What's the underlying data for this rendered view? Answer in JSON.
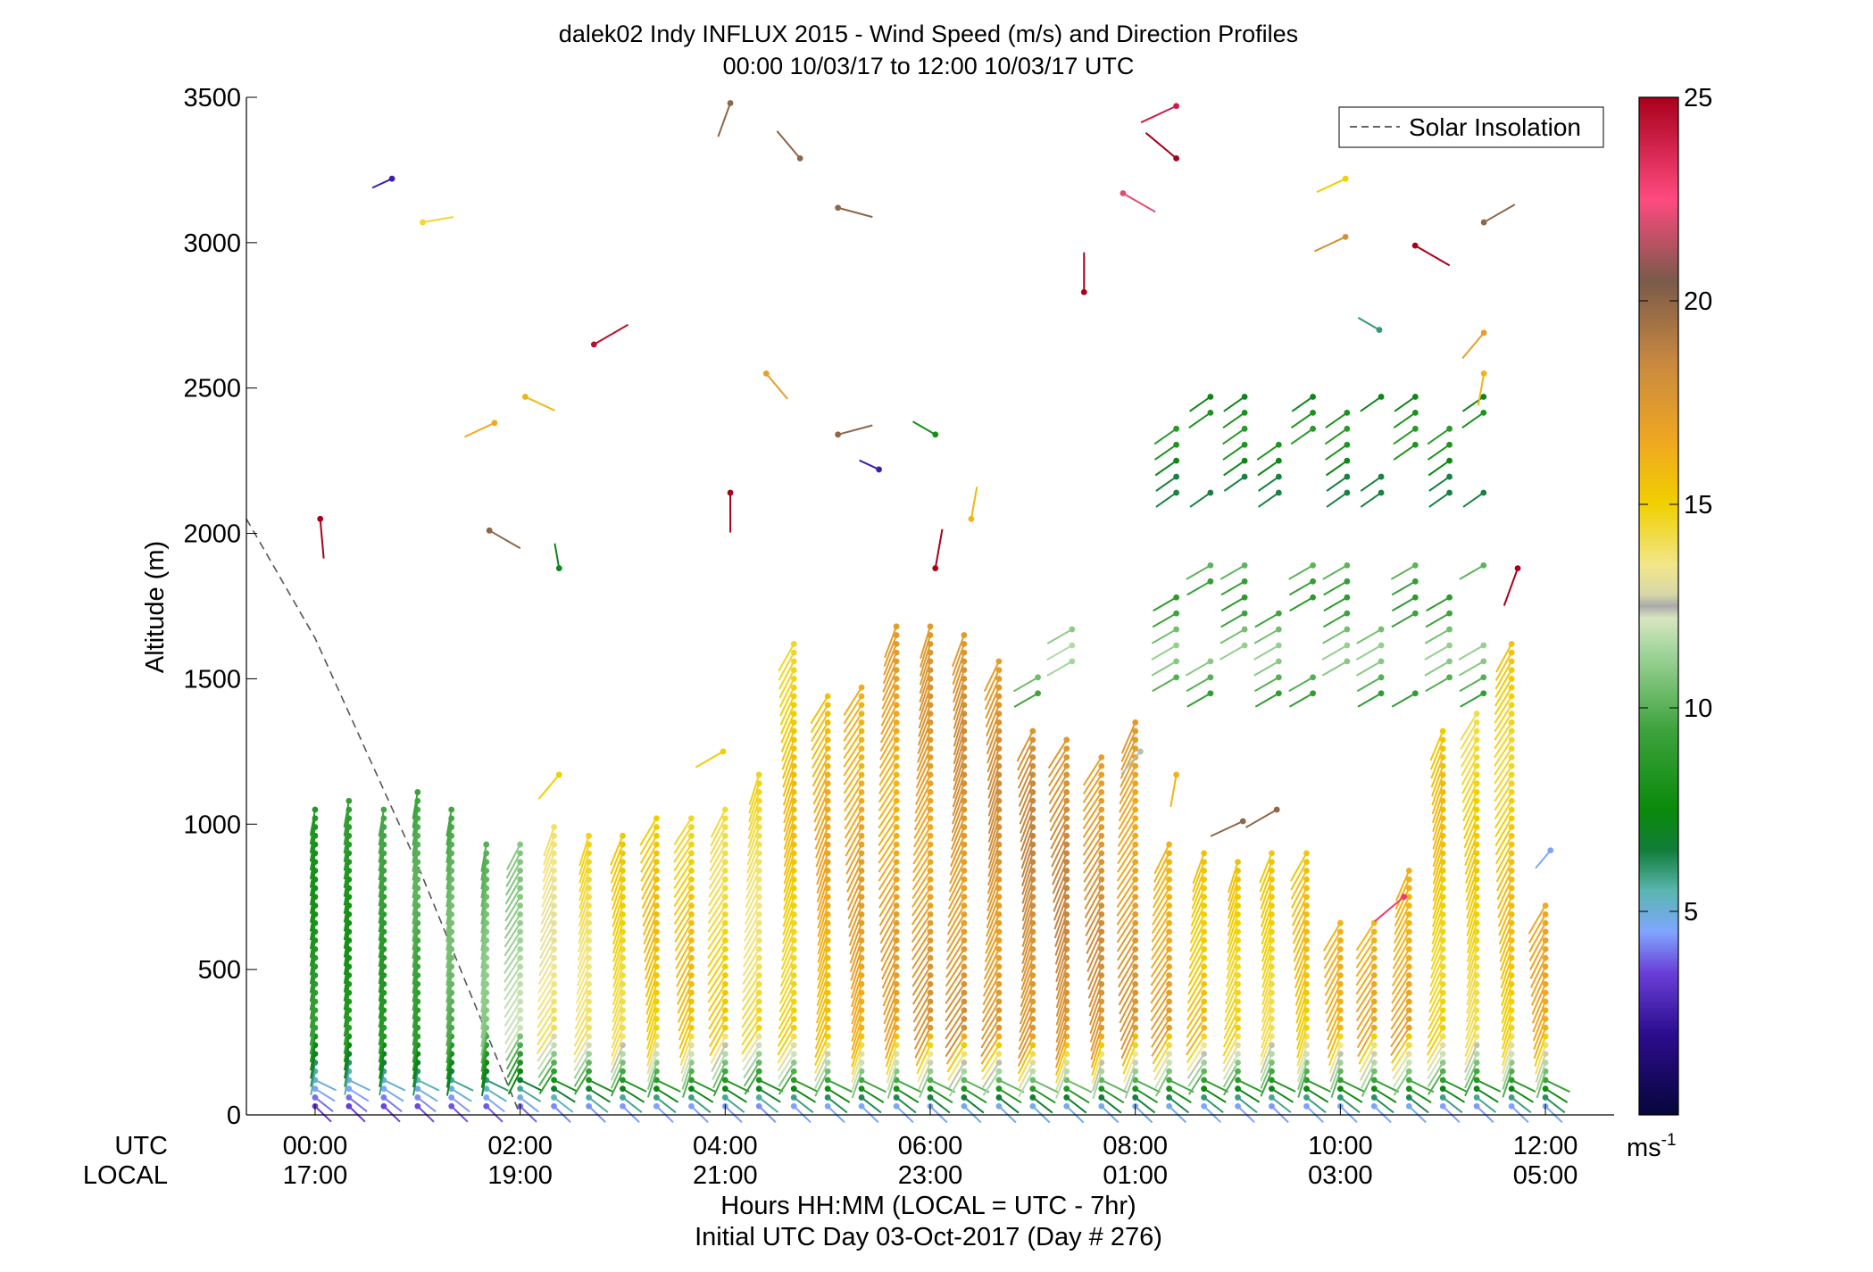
{
  "chart_data": {
    "type": "scatter",
    "title": "dalek02 Indy INFLUX 2015 - Wind Speed (m/s) and Direction Profiles",
    "subtitle": "00:00 10/03/17 to 12:00 10/03/17  UTC",
    "ylabel": "Altitude (m)",
    "ylim": [
      0,
      3500
    ],
    "yticks": [
      "0",
      "500",
      "1000",
      "1500",
      "2000",
      "2500",
      "3000",
      "3500"
    ],
    "xlim_hours": [
      -0.67,
      12.67
    ],
    "x_row_labels": [
      "UTC",
      "LOCAL"
    ],
    "x_ticks_utc": [
      "00:00",
      "02:00",
      "04:00",
      "06:00",
      "08:00",
      "10:00",
      "12:00"
    ],
    "x_ticks_local": [
      "17:00",
      "19:00",
      "21:00",
      "23:00",
      "01:00",
      "03:00",
      "05:00"
    ],
    "xlabel": "Hours HH:MM  (LOCAL = UTC - 7hr)",
    "xlabel2": "Initial UTC Day 03-Oct-2017 (Day # 276)",
    "legend": {
      "entries": [
        "Solar Insolation"
      ],
      "placement": "top-right"
    },
    "colorbar": {
      "range": [
        0,
        25
      ],
      "ticks": [
        "5",
        "10",
        "15",
        "20",
        "25"
      ],
      "unit_label": "ms",
      "unit_exp": "-1",
      "stops": [
        [
          0,
          "#06063a"
        ],
        [
          2,
          "#2c0d8e"
        ],
        [
          3.5,
          "#6a3fd8"
        ],
        [
          4.5,
          "#7fa6ff"
        ],
        [
          5.5,
          "#5ab6b0"
        ],
        [
          6.5,
          "#127d3a"
        ],
        [
          7.5,
          "#0a8a0a"
        ],
        [
          9.5,
          "#3fa33f"
        ],
        [
          11.5,
          "#a7d8a0"
        ],
        [
          12.2,
          "#d9e6c0"
        ],
        [
          12.5,
          "#aaaaaa"
        ],
        [
          12.8,
          "#d8d8a8"
        ],
        [
          13.5,
          "#f2e68a"
        ],
        [
          15,
          "#f0d000"
        ],
        [
          16.5,
          "#f0a820"
        ],
        [
          18.5,
          "#c88840"
        ],
        [
          20.5,
          "#7a5a4a"
        ],
        [
          22.5,
          "#ff4a80"
        ],
        [
          25,
          "#a8001a"
        ]
      ]
    },
    "solar_insolation": [
      [
        -0.67,
        2050
      ],
      [
        0,
        1640
      ],
      [
        1,
        860
      ],
      [
        2,
        0
      ]
    ],
    "profile_times_hours": [
      0,
      0.33,
      0.67,
      1,
      1.33,
      1.67,
      2,
      2.33,
      2.67,
      3,
      3.33,
      3.67,
      4,
      4.33,
      4.67,
      5,
      5.33,
      5.67,
      6,
      6.33,
      6.67,
      7,
      7.33,
      7.67,
      8,
      8.33,
      8.67,
      9,
      9.33,
      9.67,
      10,
      10.33,
      10.67,
      11,
      11.33,
      11.67,
      12
    ],
    "profile_top_m": [
      1050,
      1090,
      1060,
      1130,
      1060,
      950,
      950,
      1000,
      960,
      960,
      1020,
      1020,
      1060,
      1190,
      1620,
      1450,
      1480,
      1690,
      1700,
      1660,
      1580,
      1320,
      1310,
      1250,
      1350,
      950,
      900,
      880,
      900,
      920,
      680,
      660,
      850,
      1320,
      1380,
      1620,
      720
    ],
    "profile_speed_ms": [
      9,
      9,
      9.5,
      10,
      10.5,
      11,
      12,
      14.5,
      15,
      15.5,
      16,
      16,
      15.5,
      15,
      16,
      17,
      17.5,
      17.5,
      18,
      18.5,
      18.5,
      19,
      19,
      18.5,
      18,
      17.5,
      16.5,
      16,
      15.5,
      16,
      16.5,
      17,
      17.5,
      16,
      15.5,
      16,
      17
    ],
    "sparse_obs": [
      {
        "t": 0.05,
        "alt": 2050,
        "spd": 25,
        "dir": 175
      },
      {
        "t": 0.75,
        "alt": 3220,
        "spd": 2.5,
        "dir": 245
      },
      {
        "t": 1.05,
        "alt": 3070,
        "spd": 14.5,
        "dir": 80
      },
      {
        "t": 1.75,
        "alt": 2380,
        "spd": 16.5,
        "dir": 245
      },
      {
        "t": 1.7,
        "alt": 2010,
        "spd": 20,
        "dir": 120
      },
      {
        "t": 2.05,
        "alt": 2470,
        "spd": 16,
        "dir": 115
      },
      {
        "t": 2.38,
        "alt": 1880,
        "spd": 7,
        "dir": 350
      },
      {
        "t": 2.72,
        "alt": 2650,
        "spd": 24.5,
        "dir": 60
      },
      {
        "t": 2.38,
        "alt": 1170,
        "spd": 15,
        "dir": 220
      },
      {
        "t": 4.05,
        "alt": 3480,
        "spd": 20,
        "dir": 200
      },
      {
        "t": 4.05,
        "alt": 2140,
        "spd": 25,
        "dir": 180
      },
      {
        "t": 3.98,
        "alt": 1250,
        "spd": 15,
        "dir": 240
      },
      {
        "t": 4.4,
        "alt": 2550,
        "spd": 17,
        "dir": 140
      },
      {
        "t": 4.73,
        "alt": 3290,
        "spd": 20,
        "dir": 320
      },
      {
        "t": 5.1,
        "alt": 3120,
        "spd": 20,
        "dir": 105
      },
      {
        "t": 5.1,
        "alt": 2340,
        "spd": 20,
        "dir": 75
      },
      {
        "t": 5.5,
        "alt": 2220,
        "spd": 2.5,
        "dir": 295
      },
      {
        "t": 6.05,
        "alt": 2340,
        "spd": 8,
        "dir": 300
      },
      {
        "t": 6.05,
        "alt": 1880,
        "spd": 25,
        "dir": 10
      },
      {
        "t": 6.4,
        "alt": 2050,
        "spd": 16,
        "dir": 10
      },
      {
        "t": 7.5,
        "alt": 2830,
        "spd": 25,
        "dir": 0
      },
      {
        "t": 7.88,
        "alt": 3170,
        "spd": 22,
        "dir": 120
      },
      {
        "t": 8.05,
        "alt": 1250,
        "spd": 12.4,
        "dir": 220
      },
      {
        "t": 8.4,
        "alt": 3470,
        "spd": 24,
        "dir": 245
      },
      {
        "t": 8.4,
        "alt": 3290,
        "spd": 25,
        "dir": 310
      },
      {
        "t": 8.4,
        "alt": 1170,
        "spd": 16,
        "dir": 190
      },
      {
        "t": 9.05,
        "alt": 1010,
        "spd": 20,
        "dir": 245
      },
      {
        "t": 9.38,
        "alt": 1050,
        "spd": 20,
        "dir": 240
      },
      {
        "t": 10.05,
        "alt": 3220,
        "spd": 15,
        "dir": 245
      },
      {
        "t": 10.05,
        "alt": 3020,
        "spd": 18,
        "dir": 245
      },
      {
        "t": 10.38,
        "alt": 2700,
        "spd": 6,
        "dir": 300
      },
      {
        "t": 10.73,
        "alt": 2990,
        "spd": 25,
        "dir": 120
      },
      {
        "t": 11.4,
        "alt": 3070,
        "spd": 20,
        "dir": 60
      },
      {
        "t": 11.4,
        "alt": 2690,
        "spd": 17,
        "dir": 220
      },
      {
        "t": 11.4,
        "alt": 2550,
        "spd": 16,
        "dir": 190
      },
      {
        "t": 11.73,
        "alt": 1880,
        "spd": 25,
        "dir": 200
      },
      {
        "t": 12.05,
        "alt": 910,
        "spd": 4.5,
        "dir": 220
      },
      {
        "t": 10.62,
        "alt": 750,
        "spd": 23,
        "dir": 230
      }
    ],
    "upper_layers": [
      {
        "t_from": 8.4,
        "t_to": 11.4,
        "alt_from": 2140,
        "alt_to": 2470,
        "spd": 7.5,
        "dir": 235
      },
      {
        "t_from": 8.4,
        "t_to": 11.7,
        "alt_from": 1450,
        "alt_to": 1920,
        "spd": 10,
        "dir": 240
      },
      {
        "t_from": 7.05,
        "t_to": 7.7,
        "alt_from": 1450,
        "alt_to": 1700,
        "spd": 10.5,
        "dir": 240
      }
    ]
  }
}
